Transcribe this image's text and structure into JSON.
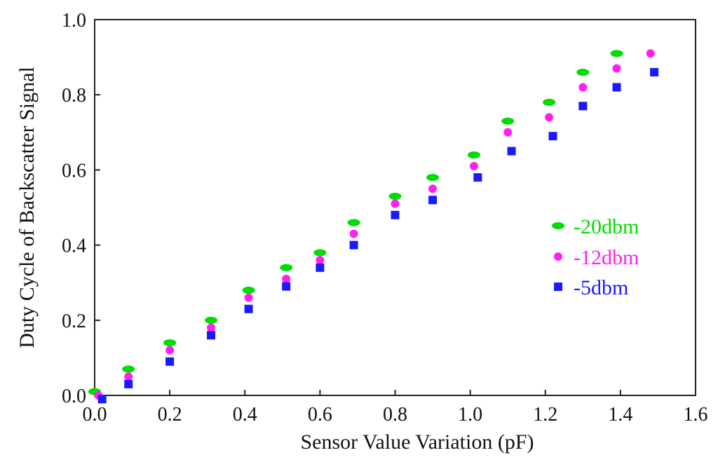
{
  "chart_data": {
    "type": "scatter",
    "title": "",
    "xlabel": "Sensor Value Variation (pF)",
    "ylabel": "Duty Cycle of Backscatter Signal",
    "xlim": [
      0.0,
      1.6
    ],
    "ylim": [
      0.0,
      1.0
    ],
    "xticks": [
      "0.0",
      "0.2",
      "0.4",
      "0.6",
      "0.8",
      "1.0",
      "1.2",
      "1.4",
      "1.6"
    ],
    "yticks": [
      "0.0",
      "0.2",
      "0.4",
      "0.6",
      "0.8",
      "1.0"
    ],
    "grid": false,
    "legend_position": "right",
    "series": [
      {
        "name": "-20dbm",
        "color": "#00dd00",
        "marker": "ellipse",
        "x": [
          0.0,
          0.09,
          0.2,
          0.31,
          0.41,
          0.51,
          0.6,
          0.69,
          0.8,
          0.9,
          1.01,
          1.1,
          1.21,
          1.3,
          1.39
        ],
        "y": [
          0.01,
          0.07,
          0.14,
          0.2,
          0.28,
          0.34,
          0.38,
          0.46,
          0.53,
          0.58,
          0.64,
          0.73,
          0.78,
          0.86,
          0.91
        ]
      },
      {
        "name": "-12dbm",
        "color": "#ff22ee",
        "marker": "circle",
        "x": [
          0.01,
          0.09,
          0.2,
          0.31,
          0.41,
          0.51,
          0.6,
          0.69,
          0.8,
          0.9,
          1.01,
          1.1,
          1.21,
          1.3,
          1.39,
          1.48
        ],
        "y": [
          0.0,
          0.05,
          0.12,
          0.18,
          0.26,
          0.31,
          0.36,
          0.43,
          0.51,
          0.55,
          0.61,
          0.7,
          0.74,
          0.82,
          0.87,
          0.91
        ]
      },
      {
        "name": "-5dbm",
        "color": "#1a1aff",
        "marker": "square",
        "x": [
          0.02,
          0.09,
          0.2,
          0.31,
          0.41,
          0.51,
          0.6,
          0.69,
          0.8,
          0.9,
          1.02,
          1.11,
          1.22,
          1.3,
          1.39,
          1.49
        ],
        "y": [
          -0.01,
          0.03,
          0.09,
          0.16,
          0.23,
          0.29,
          0.34,
          0.4,
          0.48,
          0.52,
          0.58,
          0.65,
          0.69,
          0.77,
          0.82,
          0.86
        ]
      }
    ]
  }
}
